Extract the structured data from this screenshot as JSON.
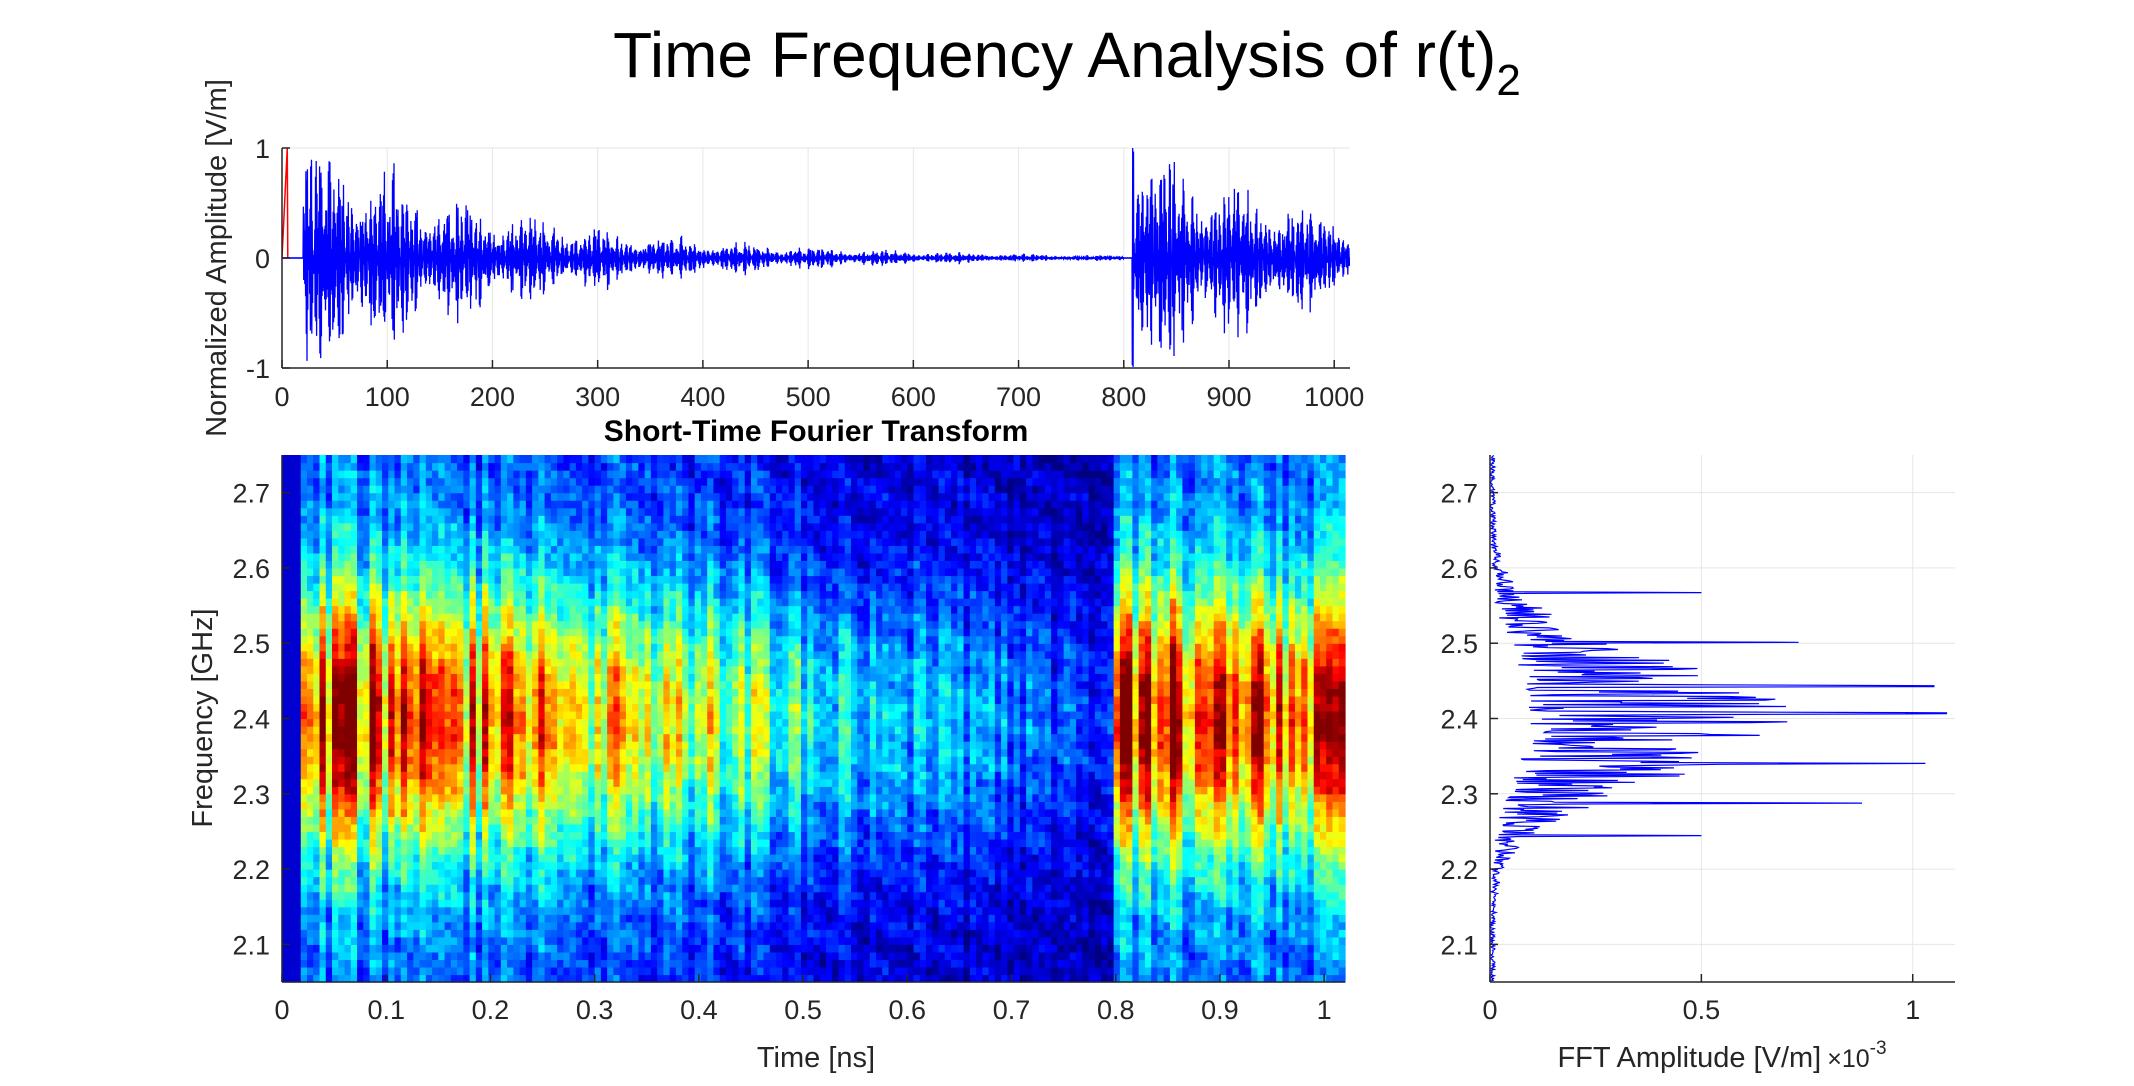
{
  "figure": {
    "title": "Time Frequency Analysis of r(t)",
    "title_subscript": "2"
  },
  "colors": {
    "signal_line": "#0000ff",
    "reference_pulse": "#ff0000",
    "axis": "#262626",
    "grid": "#e6e6e6",
    "colormap": "jet"
  },
  "chart_data": [
    {
      "type": "line",
      "ylabel": "Normalized Amplitude [V/m]",
      "xlim": [
        0,
        1015
      ],
      "ylim": [
        -1,
        1
      ],
      "xticks": [
        "0",
        "100",
        "200",
        "300",
        "400",
        "500",
        "600",
        "700",
        "800",
        "900",
        "1000"
      ],
      "yticks": [
        "-1",
        "0",
        "1"
      ],
      "grid": true,
      "series_envelope": {
        "segments": [
          {
            "x_start": 20,
            "x_end": 800,
            "peak_at_start": 1.0,
            "decay": "exponential",
            "end_amplitude": 0.02
          },
          {
            "x_start": 808,
            "x_end": 1015,
            "peak_at_start": 1.0,
            "end_amplitude": 0.35
          }
        ],
        "reference_pulse": {
          "x": [
            0,
            5
          ],
          "y": [
            0,
            1
          ]
        }
      }
    },
    {
      "type": "heatmap",
      "title": "Short-Time Fourier Transform",
      "xlabel": "Time [ns]",
      "ylabel": "Frequency [GHz]",
      "xlim": [
        0,
        1.02
      ],
      "ylim": [
        2.05,
        2.75
      ],
      "xticks": [
        "0",
        "0.1",
        "0.2",
        "0.3",
        "0.4",
        "0.5",
        "0.6",
        "0.7",
        "0.8",
        "0.9",
        "1"
      ],
      "yticks": [
        "2.1",
        "2.2",
        "2.3",
        "2.4",
        "2.5",
        "2.6",
        "2.7"
      ],
      "intensity_profile": {
        "center_frequency_ghz": 2.4,
        "strong_time_ranges_ns": [
          [
            0.02,
            0.4
          ],
          [
            0.8,
            1.02
          ]
        ],
        "weak_time_ranges_ns": [
          [
            0.0,
            0.02
          ],
          [
            0.55,
            0.8
          ]
        ]
      }
    },
    {
      "type": "line",
      "xlabel": "FFT Amplitude [V/m]",
      "x_multiplier": "×10",
      "x_multiplier_exp": "-3",
      "xlim": [
        0,
        1.1
      ],
      "ylim": [
        2.05,
        2.75
      ],
      "xticks": [
        "0",
        "0.5",
        "1"
      ],
      "yticks": [
        "2.1",
        "2.2",
        "2.3",
        "2.4",
        "2.5",
        "2.6",
        "2.7"
      ],
      "grid": true,
      "notable_peaks": [
        {
          "freq": 2.407,
          "amp": 1.08
        },
        {
          "freq": 2.443,
          "amp": 1.05
        },
        {
          "freq": 2.34,
          "amp": 1.03
        },
        {
          "freq": 2.288,
          "amp": 0.88
        },
        {
          "freq": 2.501,
          "amp": 0.73
        },
        {
          "freq": 2.567,
          "amp": 0.5
        },
        {
          "freq": 2.244,
          "amp": 0.5
        }
      ]
    }
  ]
}
